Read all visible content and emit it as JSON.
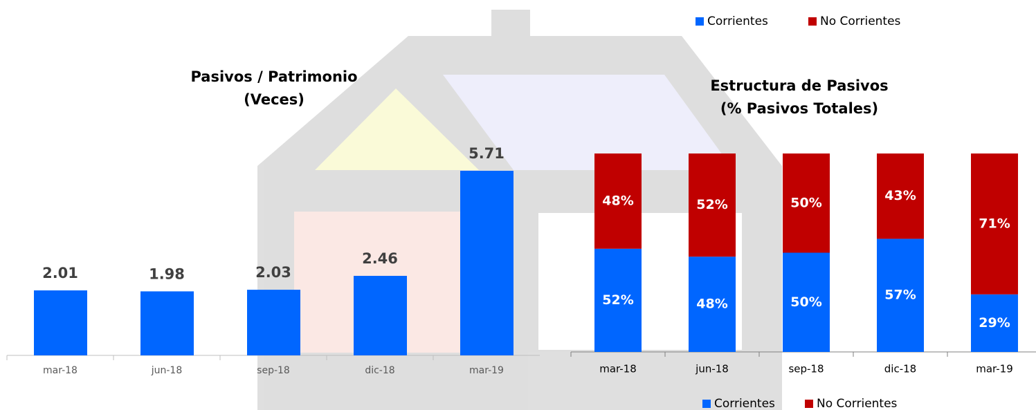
{
  "chart_data": [
    {
      "type": "bar",
      "title": [
        "Pasivos / Patrimonio",
        "(Veces)"
      ],
      "categories": [
        "mar-18",
        "jun-18",
        "sep-18",
        "dic-18",
        "mar-19"
      ],
      "values": [
        2.01,
        1.98,
        2.03,
        2.46,
        5.71
      ],
      "color": "#0066ff"
    },
    {
      "type": "stacked-bar",
      "title": [
        "Estructura de Pasivos",
        "(% Pasivos Totales)"
      ],
      "categories": [
        "mar-18",
        "jun-18",
        "sep-18",
        "dic-18",
        "mar-19"
      ],
      "series": [
        {
          "name": "Corrientes",
          "color": "#0066ff",
          "values": [
            52,
            48,
            50,
            57,
            29
          ],
          "value_labels": [
            "52%",
            "48%",
            "50%",
            "57%",
            "29%"
          ]
        },
        {
          "name": "No Corrientes",
          "color": "#c00000",
          "values": [
            48,
            52,
            50,
            43,
            71
          ],
          "value_labels": [
            "48%",
            "52%",
            "50%",
            "43%",
            "71%"
          ]
        }
      ]
    }
  ]
}
